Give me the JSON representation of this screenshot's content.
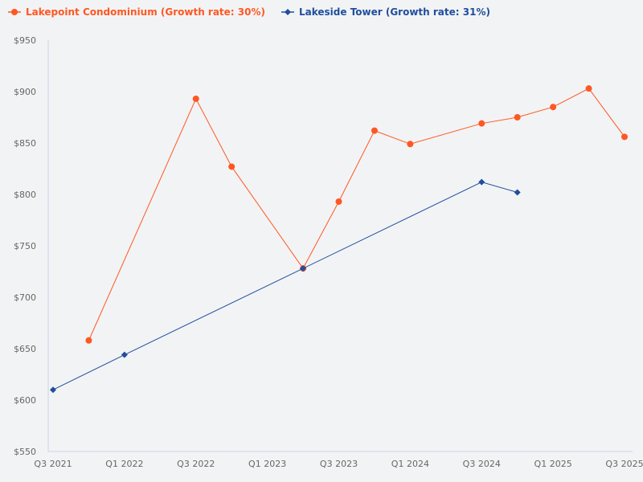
{
  "chart_data": {
    "type": "line",
    "title": "",
    "xlabel": "",
    "ylabel": "",
    "ylim": [
      550,
      950
    ],
    "yticks": [
      550,
      600,
      650,
      700,
      750,
      800,
      850,
      900,
      950
    ],
    "ytick_labels": [
      "$550",
      "$600",
      "$650",
      "$700",
      "$750",
      "$800",
      "$850",
      "$900",
      "$950"
    ],
    "x_categories": [
      "Q3 2021",
      "Q4 2021",
      "Q1 2022",
      "Q2 2022",
      "Q3 2022",
      "Q4 2022",
      "Q1 2023",
      "Q2 2023",
      "Q3 2023",
      "Q4 2023",
      "Q1 2024",
      "Q2 2024",
      "Q3 2024",
      "Q4 2024",
      "Q1 2025",
      "Q2 2025",
      "Q3 2025"
    ],
    "xtick_labels": [
      "Q3 2021",
      "Q1 2022",
      "Q3 2022",
      "Q1 2023",
      "Q3 2023",
      "Q1 2024",
      "Q3 2024",
      "Q1 2025",
      "Q3 2025"
    ],
    "grid": false,
    "legend_position": "top-left",
    "series": [
      {
        "name": "Lakepoint Condominium (Growth rate: 30%)",
        "color": "#ff5722",
        "marker": "circle",
        "points": [
          {
            "x": "Q4 2021",
            "y": 658
          },
          {
            "x": "Q3 2022",
            "y": 893
          },
          {
            "x": "Q4 2022",
            "y": 827
          },
          {
            "x": "Q2 2023",
            "y": 728
          },
          {
            "x": "Q3 2023",
            "y": 793
          },
          {
            "x": "Q4 2023",
            "y": 862
          },
          {
            "x": "Q1 2024",
            "y": 849
          },
          {
            "x": "Q3 2024",
            "y": 869
          },
          {
            "x": "Q4 2024",
            "y": 875
          },
          {
            "x": "Q1 2025",
            "y": 885
          },
          {
            "x": "Q2 2025",
            "y": 903
          },
          {
            "x": "Q3 2025",
            "y": 856
          }
        ]
      },
      {
        "name": "Lakeside Tower (Growth rate: 31%)",
        "color": "#1f4e9c",
        "marker": "diamond",
        "points": [
          {
            "x": "Q3 2021",
            "y": 610
          },
          {
            "x": "Q1 2022",
            "y": 644
          },
          {
            "x": "Q2 2023",
            "y": 728
          },
          {
            "x": "Q3 2024",
            "y": 812
          },
          {
            "x": "Q4 2024",
            "y": 802
          }
        ]
      }
    ]
  },
  "legend": {
    "items": [
      {
        "label": "Lakepoint Condominium (Growth rate: 30%)",
        "color": "#ff5722"
      },
      {
        "label": "Lakeside Tower (Growth rate: 31%)",
        "color": "#1f4e9c"
      }
    ]
  }
}
